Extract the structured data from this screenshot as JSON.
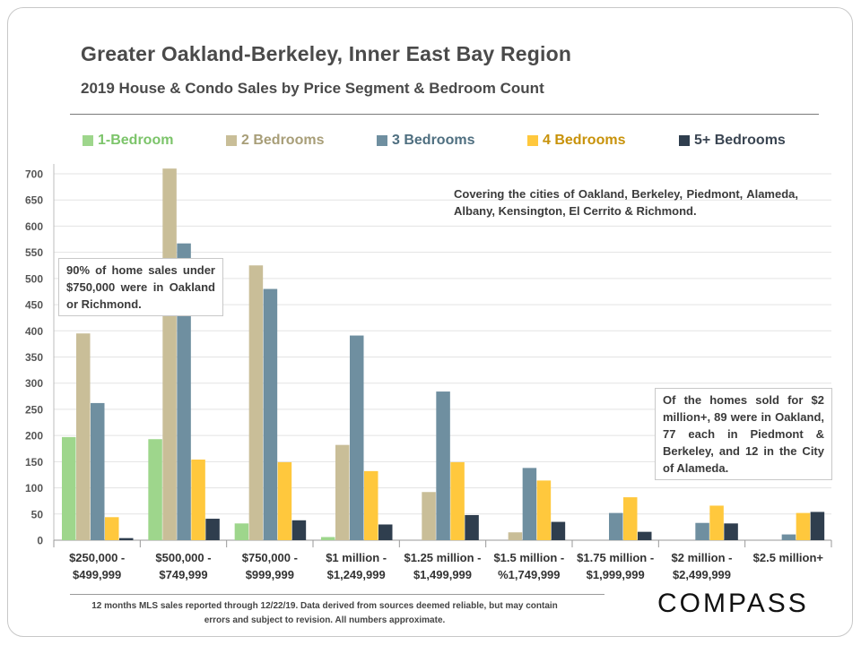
{
  "title": "Greater Oakland-Berkeley, Inner East Bay Region",
  "subtitle": "2019 House & Condo Sales by Price Segment & Bedroom Count",
  "note_cities": "Covering the cities of Oakland, Berkeley, Piedmont, Alameda, Albany, Kensington, El Cerrito & Richmond.",
  "note_left": "90% of home sales under $750,000 were in Oakland or Richmond.",
  "note_right": "Of the homes sold for $2 million+, 89 were in Oakland, 77 each in Piedmont & Berkeley, and 12 in the City of Alameda.",
  "footer": "12 months MLS sales reported through 12/22/19. Data derived from sources deemed reliable, but may contain errors and subject to revision. All numbers approximate.",
  "logo": "COMPASS",
  "chart_data": {
    "type": "bar",
    "title": "Greater Oakland-Berkeley, Inner East Bay Region",
    "subtitle": "2019 House & Condo Sales by Price Segment & Bedroom Count",
    "ylim": [
      0,
      700
    ],
    "yticks": [
      0,
      50,
      100,
      150,
      200,
      250,
      300,
      350,
      400,
      450,
      500,
      550,
      600,
      650,
      700
    ],
    "grid": true,
    "legend_position": "top",
    "categories": [
      [
        "$250,000 -",
        "$499,999"
      ],
      [
        "$500,000 -",
        "$749,999"
      ],
      [
        "$750,000 -",
        "$999,999"
      ],
      [
        "$1 million -",
        "$1,249,999"
      ],
      [
        "$1.25 million -",
        "$1,499,999"
      ],
      [
        "$1.5 million -",
        "%1,749,999"
      ],
      [
        "$1.75 million -",
        "$1,999,999"
      ],
      [
        "$2 million -",
        "$2,499,999"
      ],
      [
        "$2.5 million+"
      ]
    ],
    "series": [
      {
        "name": "1-Bedroom",
        "color": "#9ed68c",
        "label_color": "#7cc46a",
        "values": [
          197,
          193,
          32,
          6,
          0,
          0,
          0,
          0,
          0
        ]
      },
      {
        "name": "2 Bedrooms",
        "color": "#c9be98",
        "label_color": "#a89e78",
        "values": [
          395,
          710,
          525,
          182,
          92,
          15,
          0,
          0,
          0
        ]
      },
      {
        "name": "3 Bedrooms",
        "color": "#6f8fa0",
        "label_color": "#4f6f80",
        "values": [
          262,
          567,
          480,
          391,
          284,
          138,
          52,
          33,
          11
        ]
      },
      {
        "name": "4 Bedrooms",
        "color": "#ffc83d",
        "label_color": "#c8920a",
        "values": [
          44,
          154,
          149,
          132,
          149,
          114,
          82,
          66,
          52
        ]
      },
      {
        "name": "5+ Bedrooms",
        "color": "#2f3e4e",
        "label_color": "#3a4552",
        "values": [
          4,
          41,
          38,
          30,
          48,
          35,
          16,
          32,
          54
        ]
      }
    ]
  }
}
